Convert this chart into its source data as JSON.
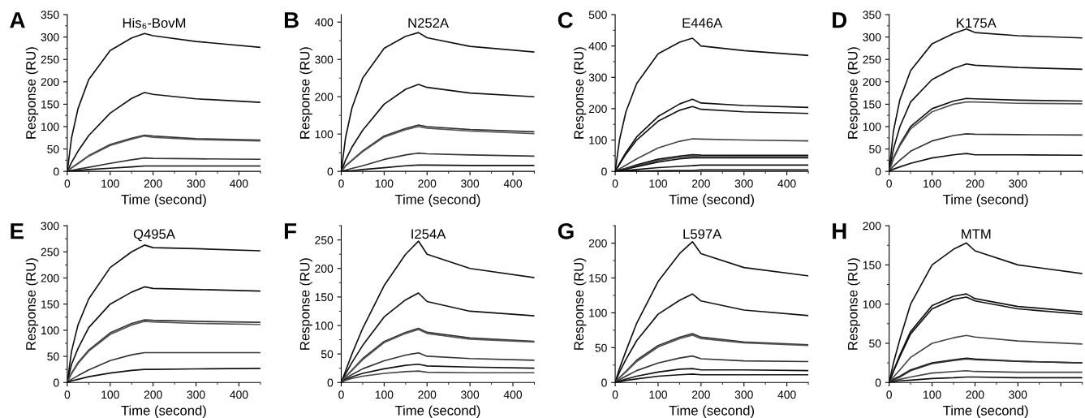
{
  "chart_data": [
    {
      "type": "line",
      "title": "His₆-BovM",
      "xlabel": "Time (second)",
      "ylabel": "Response (RU)",
      "annotations": [
        "A"
      ],
      "x": [
        0,
        10,
        25,
        50,
        100,
        150,
        180,
        200,
        300,
        450
      ],
      "xlim": [
        0,
        450
      ],
      "xticks": [
        0,
        100,
        200,
        300,
        400
      ],
      "ylim": [
        0,
        350
      ],
      "yticks": [
        0,
        50,
        100,
        150,
        200,
        250,
        300,
        350
      ],
      "series": [
        {
          "color": "#111111",
          "values": [
            0,
            75,
            140,
            205,
            270,
            298,
            308,
            303,
            290,
            277
          ]
        },
        {
          "color": "#111111",
          "values": [
            0,
            20,
            45,
            80,
            130,
            163,
            176,
            172,
            162,
            154
          ]
        },
        {
          "color": "#333333",
          "values": [
            0,
            8,
            18,
            35,
            60,
            74,
            81,
            79,
            73,
            70
          ]
        },
        {
          "color": "#555555",
          "values": [
            0,
            8,
            17,
            34,
            58,
            72,
            79,
            76,
            71,
            68
          ]
        },
        {
          "color": "#333333",
          "values": [
            0,
            2,
            5,
            9,
            18,
            26,
            30,
            29,
            28,
            27
          ]
        },
        {
          "color": "#111111",
          "values": [
            0,
            1,
            2,
            4,
            7,
            10,
            12,
            12,
            12,
            12
          ]
        }
      ]
    },
    {
      "type": "line",
      "title": "N252A",
      "xlabel": "Time (second)",
      "ylabel": "Response (RU)",
      "annotations": [
        "B"
      ],
      "x": [
        0,
        10,
        25,
        50,
        100,
        150,
        180,
        200,
        300,
        450
      ],
      "xlim": [
        0,
        450
      ],
      "xticks": [
        0,
        100,
        200,
        300,
        400
      ],
      "ylim": [
        0,
        420
      ],
      "yticks": [
        0,
        100,
        200,
        300,
        400
      ],
      "series": [
        {
          "color": "#111111",
          "values": [
            0,
            90,
            170,
            250,
            330,
            362,
            372,
            358,
            335,
            320
          ]
        },
        {
          "color": "#111111",
          "values": [
            0,
            30,
            65,
            110,
            180,
            220,
            233,
            225,
            210,
            200
          ]
        },
        {
          "color": "#333333",
          "values": [
            0,
            15,
            30,
            55,
            95,
            115,
            124,
            120,
            112,
            106
          ]
        },
        {
          "color": "#555555",
          "values": [
            0,
            14,
            29,
            53,
            92,
            112,
            120,
            116,
            108,
            101
          ]
        },
        {
          "color": "#333333",
          "values": [
            0,
            3,
            8,
            15,
            32,
            44,
            49,
            47,
            44,
            41
          ]
        },
        {
          "color": "#111111",
          "values": [
            0,
            1,
            2,
            5,
            10,
            15,
            17,
            17,
            16,
            16
          ]
        }
      ]
    },
    {
      "type": "line",
      "title": "E446A",
      "xlabel": "Time (second)",
      "ylabel": "Response (RU)",
      "annotations": [
        "C"
      ],
      "x": [
        0,
        10,
        25,
        50,
        100,
        150,
        180,
        200,
        300,
        450
      ],
      "xlim": [
        0,
        450
      ],
      "xticks": [
        0,
        100,
        200,
        300,
        400
      ],
      "ylim": [
        0,
        500
      ],
      "yticks": [
        0,
        100,
        200,
        300,
        400,
        500
      ],
      "series": [
        {
          "color": "#111111",
          "values": [
            0,
            100,
            190,
            280,
            375,
            412,
            425,
            400,
            385,
            370
          ]
        },
        {
          "color": "#111111",
          "values": [
            0,
            25,
            60,
            110,
            175,
            215,
            230,
            218,
            210,
            204
          ]
        },
        {
          "color": "#111111",
          "values": [
            0,
            22,
            55,
            100,
            160,
            195,
            207,
            198,
            190,
            185
          ]
        },
        {
          "color": "#444444",
          "values": [
            0,
            8,
            20,
            40,
            75,
            96,
            104,
            103,
            100,
            97
          ]
        },
        {
          "color": "#111111",
          "values": [
            0,
            4,
            10,
            21,
            39,
            49,
            53,
            52,
            51,
            51
          ]
        },
        {
          "color": "#444444",
          "values": [
            0,
            4,
            9,
            18,
            35,
            45,
            48,
            47,
            47,
            47
          ]
        },
        {
          "color": "#111111",
          "values": [
            0,
            3,
            7,
            15,
            30,
            40,
            43,
            43,
            43,
            43
          ]
        },
        {
          "color": "#111111",
          "values": [
            0,
            1,
            3,
            6,
            12,
            16,
            18,
            20,
            20,
            20
          ]
        },
        {
          "color": "#111111",
          "values": [
            0,
            0,
            1,
            1,
            2,
            3,
            3,
            5,
            5,
            5
          ]
        }
      ]
    },
    {
      "type": "line",
      "title": "K175A",
      "xlabel": "Time (second)",
      "ylabel": "Response (RU)",
      "annotations": [
        "D"
      ],
      "x": [
        0,
        10,
        25,
        50,
        100,
        150,
        180,
        200,
        300,
        450
      ],
      "xlim": [
        0,
        450
      ],
      "xticks": [
        0,
        100,
        200,
        300,
        {
          "value": 400,
          "label": null
        }
      ],
      "ylim": [
        0,
        350
      ],
      "yticks": [
        0,
        50,
        100,
        150,
        200,
        250,
        300,
        350
      ],
      "series": [
        {
          "color": "#111111",
          "values": [
            0,
            90,
            160,
            225,
            285,
            308,
            318,
            310,
            303,
            298
          ]
        },
        {
          "color": "#111111",
          "values": [
            0,
            50,
            100,
            155,
            205,
            230,
            240,
            237,
            232,
            228
          ]
        },
        {
          "color": "#111111",
          "values": [
            0,
            30,
            60,
            100,
            140,
            157,
            163,
            162,
            159,
            157
          ]
        },
        {
          "color": "#555555",
          "values": [
            0,
            28,
            57,
            95,
            133,
            150,
            155,
            155,
            152,
            151
          ]
        },
        {
          "color": "#333333",
          "values": [
            0,
            12,
            25,
            45,
            68,
            80,
            84,
            83,
            82,
            81
          ]
        },
        {
          "color": "#111111",
          "values": [
            0,
            5,
            10,
            18,
            30,
            37,
            40,
            37,
            37,
            36
          ]
        }
      ]
    },
    {
      "type": "line",
      "title": "Q495A",
      "xlabel": "Time (second)",
      "ylabel": "Response (RU)",
      "annotations": [
        "E"
      ],
      "x": [
        0,
        10,
        25,
        50,
        100,
        150,
        180,
        200,
        300,
        450
      ],
      "xlim": [
        0,
        450
      ],
      "xticks": [
        0,
        100,
        200,
        300,
        400
      ],
      "ylim": [
        0,
        300
      ],
      "yticks": [
        0,
        50,
        100,
        150,
        200,
        250,
        300
      ],
      "series": [
        {
          "color": "#111111",
          "values": [
            0,
            60,
            110,
            160,
            220,
            250,
            263,
            258,
            256,
            252
          ]
        },
        {
          "color": "#111111",
          "values": [
            0,
            35,
            65,
            105,
            150,
            173,
            183,
            180,
            178,
            175
          ]
        },
        {
          "color": "#333333",
          "values": [
            0,
            18,
            38,
            62,
            95,
            113,
            120,
            119,
            117,
            115
          ]
        },
        {
          "color": "#555555",
          "values": [
            0,
            17,
            36,
            60,
            92,
            110,
            117,
            116,
            113,
            111
          ]
        },
        {
          "color": "#333333",
          "values": [
            0,
            6,
            13,
            24,
            42,
            53,
            57,
            57,
            57,
            57
          ]
        },
        {
          "color": "#111111",
          "values": [
            0,
            3,
            6,
            11,
            18,
            23,
            25,
            25,
            26,
            27
          ]
        }
      ]
    },
    {
      "type": "line",
      "title": "I254A",
      "xlabel": "Time (second)",
      "ylabel": "Response (RU)",
      "annotations": [
        "F"
      ],
      "x": [
        0,
        10,
        25,
        50,
        100,
        150,
        180,
        200,
        300,
        450
      ],
      "xlim": [
        0,
        450
      ],
      "xticks": [
        0,
        100,
        200,
        300,
        400
      ],
      "ylim": [
        0,
        275
      ],
      "yticks": [
        0,
        50,
        100,
        150,
        200,
        250
      ],
      "series": [
        {
          "color": "#111111",
          "values": [
            0,
            20,
            50,
            95,
            170,
            225,
            248,
            225,
            200,
            184
          ]
        },
        {
          "color": "#111111",
          "values": [
            0,
            15,
            35,
            65,
            115,
            145,
            157,
            142,
            125,
            117
          ]
        },
        {
          "color": "#333333",
          "values": [
            0,
            10,
            22,
            42,
            72,
            88,
            95,
            88,
            78,
            72
          ]
        },
        {
          "color": "#555555",
          "values": [
            0,
            10,
            21,
            40,
            70,
            86,
            93,
            86,
            76,
            71
          ]
        },
        {
          "color": "#333333",
          "values": [
            0,
            7,
            14,
            24,
            38,
            48,
            52,
            46,
            42,
            39
          ]
        },
        {
          "color": "#111111",
          "values": [
            0,
            5,
            10,
            16,
            24,
            30,
            32,
            29,
            27,
            25
          ]
        },
        {
          "color": "#444444",
          "values": [
            0,
            4,
            7,
            11,
            16,
            19,
            20,
            18,
            17,
            17
          ]
        }
      ]
    },
    {
      "type": "line",
      "title": "L597A",
      "xlabel": "Time (second)",
      "ylabel": "Response (RU)",
      "annotations": [
        "G"
      ],
      "x": [
        0,
        10,
        25,
        50,
        100,
        150,
        180,
        200,
        300,
        450
      ],
      "xlim": [
        0,
        450
      ],
      "xticks": [
        0,
        100,
        200,
        300,
        400
      ],
      "ylim": [
        0,
        225
      ],
      "yticks": [
        0,
        50,
        100,
        150,
        200
      ],
      "series": [
        {
          "color": "#111111",
          "values": [
            0,
            20,
            45,
            85,
            145,
            185,
            202,
            185,
            165,
            153
          ]
        },
        {
          "color": "#111111",
          "values": [
            0,
            15,
            33,
            60,
            98,
            118,
            127,
            117,
            104,
            96
          ]
        },
        {
          "color": "#333333",
          "values": [
            0,
            7,
            16,
            32,
            53,
            65,
            70,
            65,
            58,
            54
          ]
        },
        {
          "color": "#555555",
          "values": [
            0,
            7,
            15,
            30,
            51,
            63,
            68,
            63,
            57,
            53
          ]
        },
        {
          "color": "#333333",
          "values": [
            0,
            4,
            9,
            17,
            28,
            35,
            38,
            34,
            31,
            30
          ]
        },
        {
          "color": "#111111",
          "values": [
            0,
            2,
            5,
            9,
            15,
            19,
            20,
            18,
            18,
            17
          ]
        },
        {
          "color": "#111111",
          "values": [
            0,
            1,
            3,
            5,
            9,
            11,
            12,
            11,
            11,
            11
          ]
        }
      ]
    },
    {
      "type": "line",
      "title": "MTM",
      "xlabel": "Time (second)",
      "ylabel": "Response (RU)",
      "annotations": [
        "H"
      ],
      "x": [
        0,
        10,
        25,
        50,
        100,
        150,
        180,
        200,
        300,
        450
      ],
      "xlim": [
        0,
        450
      ],
      "xticks": [
        0,
        100,
        200,
        300,
        {
          "value": 400,
          "label": null
        }
      ],
      "ylim": [
        0,
        200
      ],
      "yticks": [
        0,
        50,
        100,
        150,
        200
      ],
      "series": [
        {
          "color": "#111111",
          "values": [
            0,
            25,
            55,
            100,
            150,
            170,
            178,
            168,
            150,
            139
          ]
        },
        {
          "color": "#111111",
          "values": [
            0,
            15,
            35,
            65,
            98,
            110,
            113,
            107,
            97,
            90
          ]
        },
        {
          "color": "#111111",
          "values": [
            0,
            14,
            33,
            62,
            94,
            106,
            109,
            104,
            94,
            87
          ]
        },
        {
          "color": "#444444",
          "values": [
            0,
            7,
            16,
            32,
            50,
            57,
            60,
            58,
            53,
            49
          ]
        },
        {
          "color": "#111111",
          "values": [
            0,
            4,
            8,
            16,
            25,
            29,
            31,
            30,
            27,
            25
          ]
        },
        {
          "color": "#333333",
          "values": [
            0,
            3,
            7,
            15,
            24,
            28,
            30,
            29,
            27,
            25
          ]
        },
        {
          "color": "#444444",
          "values": [
            0,
            2,
            4,
            7,
            12,
            14,
            15,
            14,
            13,
            13
          ]
        },
        {
          "color": "#111111",
          "values": [
            0,
            1,
            2,
            3,
            5,
            6,
            7,
            7,
            6,
            6
          ]
        }
      ]
    }
  ]
}
